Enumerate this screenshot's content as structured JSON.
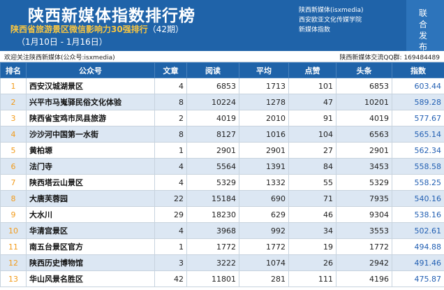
{
  "header": {
    "title": "陕西新媒体指数排行榜",
    "subtitle": "陕西省旅游景区微信影响力30强排行",
    "period": "（42期）",
    "date_range": "（1月10日 - 1月16日）",
    "org_lines": [
      "陕西新媒体(isxmedia)",
      "西安欧亚文化传媒学院",
      "新媒体指数"
    ],
    "vertical_text": "联合发布"
  },
  "welcome": {
    "left": "欢迎关注陕西新媒体(公众号:isxmedia)",
    "right": "陕西新媒体交流QQ群: 169484489"
  },
  "table": {
    "columns": [
      "排名",
      "公众号",
      "文章",
      "阅读",
      "平均",
      "点赞",
      "头条",
      "指数"
    ],
    "rows": [
      {
        "rank": "1",
        "name": "西安汉城湖景区",
        "articles": "4",
        "reads": "6853",
        "avg": "1713",
        "likes": "101",
        "headline": "6853",
        "index": "603.44"
      },
      {
        "rank": "2",
        "name": "兴平市马嵬驿民俗文化体验",
        "articles": "8",
        "reads": "10224",
        "avg": "1278",
        "likes": "47",
        "headline": "10201",
        "index": "589.28"
      },
      {
        "rank": "3",
        "name": "陕西省宝鸡市凤县旅游",
        "articles": "2",
        "reads": "4019",
        "avg": "2010",
        "likes": "91",
        "headline": "4019",
        "index": "577.67"
      },
      {
        "rank": "4",
        "name": "沙沙河中国第一水街",
        "articles": "8",
        "reads": "8127",
        "avg": "1016",
        "likes": "104",
        "headline": "6563",
        "index": "565.14"
      },
      {
        "rank": "5",
        "name": "黄柏塬",
        "articles": "1",
        "reads": "2901",
        "avg": "2901",
        "likes": "27",
        "headline": "2901",
        "index": "562.34"
      },
      {
        "rank": "6",
        "name": "法门寺",
        "articles": "4",
        "reads": "5564",
        "avg": "1391",
        "likes": "84",
        "headline": "3453",
        "index": "558.58"
      },
      {
        "rank": "7",
        "name": "陕西塔云山景区",
        "articles": "4",
        "reads": "5329",
        "avg": "1332",
        "likes": "55",
        "headline": "5329",
        "index": "558.25"
      },
      {
        "rank": "8",
        "name": "大唐芙蓉园",
        "articles": "22",
        "reads": "15184",
        "avg": "690",
        "likes": "71",
        "headline": "7935",
        "index": "540.16"
      },
      {
        "rank": "9",
        "name": "大水川",
        "articles": "29",
        "reads": "18230",
        "avg": "629",
        "likes": "46",
        "headline": "9304",
        "index": "538.16"
      },
      {
        "rank": "10",
        "name": "华清宫景区",
        "articles": "4",
        "reads": "3968",
        "avg": "992",
        "likes": "34",
        "headline": "3553",
        "index": "502.61"
      },
      {
        "rank": "11",
        "name": "南五台景区官方",
        "articles": "1",
        "reads": "1772",
        "avg": "1772",
        "likes": "19",
        "headline": "1772",
        "index": "494.88"
      },
      {
        "rank": "12",
        "name": "陕西历史博物馆",
        "articles": "3",
        "reads": "3222",
        "avg": "1074",
        "likes": "26",
        "headline": "2942",
        "index": "491.46"
      },
      {
        "rank": "13",
        "name": "华山风景名胜区",
        "articles": "42",
        "reads": "11801",
        "avg": "281",
        "likes": "111",
        "headline": "4196",
        "index": "475.87"
      }
    ]
  }
}
